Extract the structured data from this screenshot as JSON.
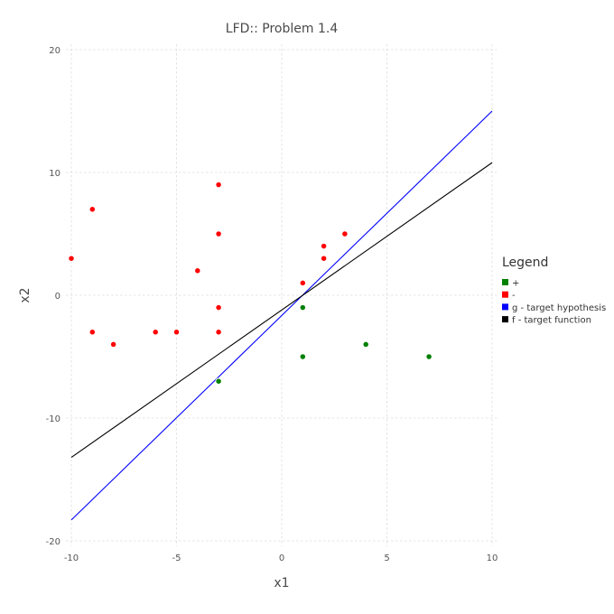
{
  "chart_data": {
    "type": "scatter",
    "title": "LFD:: Problem 1.4",
    "xlabel": "x1",
    "ylabel": "x2",
    "xlim": [
      -10,
      10
    ],
    "ylim": [
      -20,
      20
    ],
    "xticks": [
      -10,
      -5,
      0,
      5,
      10
    ],
    "yticks": [
      -20,
      -10,
      0,
      10,
      20
    ],
    "x_tick_labels": [
      "-10",
      "-5",
      "0",
      "5",
      "10"
    ],
    "y_tick_labels": [
      "-20",
      "-10",
      "0",
      "10",
      "20"
    ],
    "grid": true,
    "legend": {
      "title": "Legend",
      "placement": "right",
      "entries": [
        {
          "label": "+",
          "color": "#008000"
        },
        {
          "label": "-",
          "color": "#ff0000"
        },
        {
          "label": "g - target hypothesis",
          "color": "#0000ff"
        },
        {
          "label": "f - target function",
          "color": "#000000"
        }
      ]
    },
    "series": [
      {
        "name": "+",
        "kind": "points",
        "color": "#008000",
        "points": [
          [
            1,
            -1
          ],
          [
            1,
            -5
          ],
          [
            4,
            -4
          ],
          [
            7,
            -5
          ],
          [
            -3,
            -7
          ]
        ]
      },
      {
        "name": "-",
        "kind": "points",
        "color": "#ff0000",
        "points": [
          [
            -3,
            9
          ],
          [
            -9,
            7
          ],
          [
            -3,
            5
          ],
          [
            3,
            5
          ],
          [
            2,
            4
          ],
          [
            2,
            3
          ],
          [
            -10,
            3
          ],
          [
            -4,
            2
          ],
          [
            1,
            1
          ],
          [
            -3,
            -1
          ],
          [
            -9,
            -3
          ],
          [
            -6,
            -3
          ],
          [
            -5,
            -3
          ],
          [
            -3,
            -3
          ],
          [
            -8,
            -4
          ]
        ]
      },
      {
        "name": "g - target hypothesis",
        "kind": "line",
        "color": "#0000ff",
        "points": [
          [
            -10,
            -18.3
          ],
          [
            10,
            15
          ]
        ]
      },
      {
        "name": "f - target function",
        "kind": "line",
        "color": "#000000",
        "points": [
          [
            -10,
            -13.2
          ],
          [
            10,
            10.8
          ]
        ]
      }
    ]
  }
}
